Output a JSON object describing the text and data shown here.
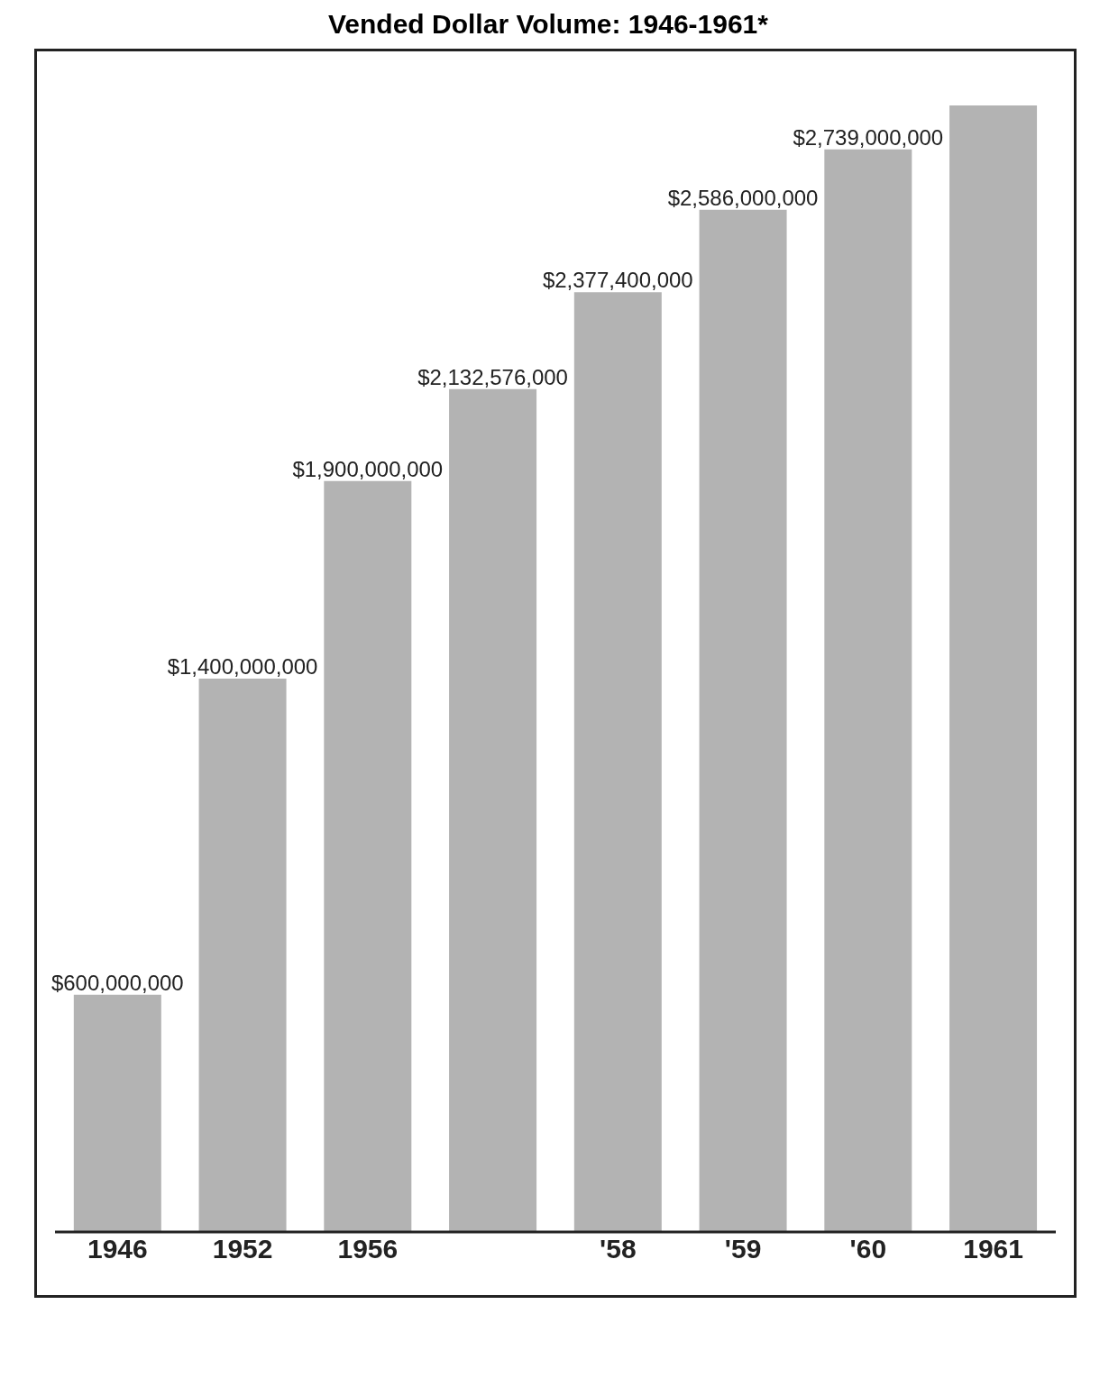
{
  "chart_data": {
    "type": "bar",
    "title": "Vended Dollar Volume: 1946-1961*",
    "categories": [
      "1946",
      "1952",
      "1956",
      null,
      "'58",
      "'59",
      "'60",
      "1961"
    ],
    "values": [
      600000000,
      1400000000,
      1900000000,
      2132576000,
      2377400000,
      2586000000,
      2739000000,
      2850000000
    ],
    "value_labels": [
      "$600,000,000",
      "$1,400,000,000",
      "$1,900,000,000",
      "$2,132,576,000",
      "$2,377,400,000",
      "$2,586,000,000",
      "$2,739,000,000",
      null
    ],
    "color": "#b3b3b3"
  }
}
